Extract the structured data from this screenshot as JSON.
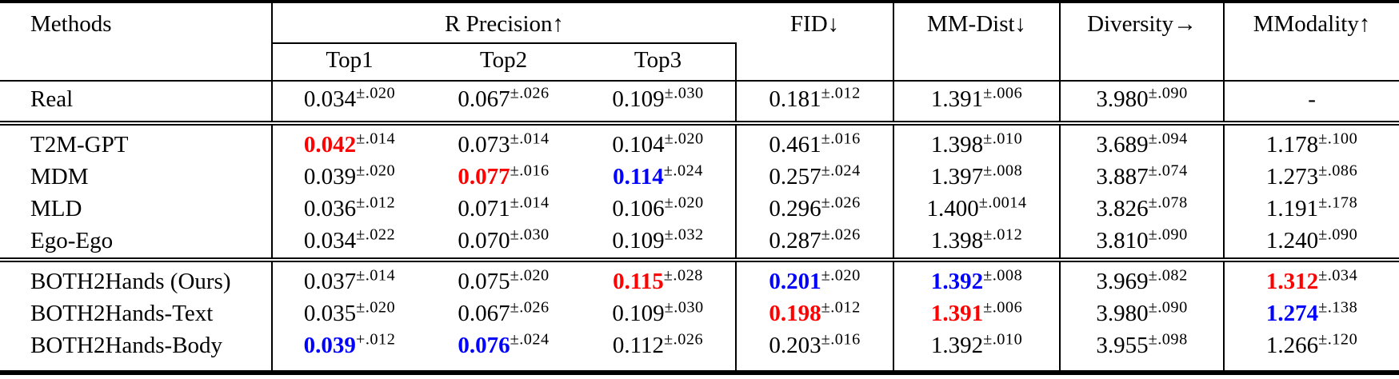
{
  "colors": {
    "highlight_best": "#ff0000",
    "highlight_second": "#0000ff",
    "text": "#000000",
    "background": "#ffffff"
  },
  "header": {
    "methods_label": "Methods",
    "r_precision_label": "R Precision↑",
    "sub_columns": [
      "Top1",
      "Top2",
      "Top3"
    ],
    "metric_columns": [
      "FID↓",
      "MM-Dist↓",
      "Diversity→",
      "MModality↑"
    ]
  },
  "rows": [
    {
      "method": "Real",
      "section": "real",
      "cells": [
        {
          "value": "0.034",
          "sup": "±.020",
          "color": "black"
        },
        {
          "value": "0.067",
          "sup": "±.026",
          "color": "black"
        },
        {
          "value": "0.109",
          "sup": "±.030",
          "color": "black"
        },
        {
          "value": "0.181",
          "sup": "±.012",
          "color": "black"
        },
        {
          "value": "1.391",
          "sup": "±.006",
          "color": "black"
        },
        {
          "value": "3.980",
          "sup": "±.090",
          "color": "black"
        },
        {
          "value": "-",
          "sup": "",
          "color": "black"
        }
      ]
    },
    {
      "method": "T2M-GPT",
      "section": "baseline",
      "cells": [
        {
          "value": "0.042",
          "sup": "±.014",
          "color": "red"
        },
        {
          "value": "0.073",
          "sup": "±.014",
          "color": "black"
        },
        {
          "value": "0.104",
          "sup": "±.020",
          "color": "black"
        },
        {
          "value": "0.461",
          "sup": "±.016",
          "color": "black"
        },
        {
          "value": "1.398",
          "sup": "±.010",
          "color": "black"
        },
        {
          "value": "3.689",
          "sup": "±.094",
          "color": "black"
        },
        {
          "value": "1.178",
          "sup": "±.100",
          "color": "black"
        }
      ]
    },
    {
      "method": "MDM",
      "section": "baseline",
      "cells": [
        {
          "value": "0.039",
          "sup": "±.020",
          "color": "black"
        },
        {
          "value": "0.077",
          "sup": "±.016",
          "color": "red"
        },
        {
          "value": "0.114",
          "sup": "±.024",
          "color": "blue"
        },
        {
          "value": "0.257",
          "sup": "±.024",
          "color": "black"
        },
        {
          "value": "1.397",
          "sup": "±.008",
          "color": "black"
        },
        {
          "value": "3.887",
          "sup": "±.074",
          "color": "black"
        },
        {
          "value": "1.273",
          "sup": "±.086",
          "color": "black"
        }
      ]
    },
    {
      "method": "MLD",
      "section": "baseline",
      "cells": [
        {
          "value": "0.036",
          "sup": "±.012",
          "color": "black"
        },
        {
          "value": "0.071",
          "sup": "±.014",
          "color": "black"
        },
        {
          "value": "0.106",
          "sup": "±.020",
          "color": "black"
        },
        {
          "value": "0.296",
          "sup": "±.026",
          "color": "black"
        },
        {
          "value": "1.400",
          "sup": "±.0014",
          "color": "black"
        },
        {
          "value": "3.826",
          "sup": "±.078",
          "color": "black"
        },
        {
          "value": "1.191",
          "sup": "±.178",
          "color": "black"
        }
      ]
    },
    {
      "method": "Ego-Ego",
      "section": "baseline",
      "cells": [
        {
          "value": "0.034",
          "sup": "±.022",
          "color": "black"
        },
        {
          "value": "0.070",
          "sup": "±.030",
          "color": "black"
        },
        {
          "value": "0.109",
          "sup": "±.032",
          "color": "black"
        },
        {
          "value": "0.287",
          "sup": "±.026",
          "color": "black"
        },
        {
          "value": "1.398",
          "sup": "±.012",
          "color": "black"
        },
        {
          "value": "3.810",
          "sup": "±.090",
          "color": "black"
        },
        {
          "value": "1.240",
          "sup": "±.090",
          "color": "black"
        }
      ]
    },
    {
      "method": "BOTH2Hands (Ours)",
      "section": "ours",
      "cells": [
        {
          "value": "0.037",
          "sup": "±.014",
          "color": "black"
        },
        {
          "value": "0.075",
          "sup": "±.020",
          "color": "black"
        },
        {
          "value": "0.115",
          "sup": "±.028",
          "color": "red"
        },
        {
          "value": "0.201",
          "sup": "±.020",
          "color": "blue"
        },
        {
          "value": "1.392",
          "sup": "±.008",
          "color": "blue"
        },
        {
          "value": "3.969",
          "sup": "±.082",
          "color": "black"
        },
        {
          "value": "1.312",
          "sup": "±.034",
          "color": "red"
        }
      ]
    },
    {
      "method": "BOTH2Hands-Text",
      "section": "ours",
      "cells": [
        {
          "value": "0.035",
          "sup": "±.020",
          "color": "black"
        },
        {
          "value": "0.067",
          "sup": "±.026",
          "color": "black"
        },
        {
          "value": "0.109",
          "sup": "±.030",
          "color": "black"
        },
        {
          "value": "0.198",
          "sup": "±.012",
          "color": "red"
        },
        {
          "value": "1.391",
          "sup": "±.006",
          "color": "red"
        },
        {
          "value": "3.980",
          "sup": "±.090",
          "color": "black"
        },
        {
          "value": "1.274",
          "sup": "±.138",
          "color": "blue"
        }
      ]
    },
    {
      "method": "BOTH2Hands-Body",
      "section": "ours",
      "cells": [
        {
          "value": "0.039",
          "sup": "+.012",
          "color": "blue"
        },
        {
          "value": "0.076",
          "sup": "±.024",
          "color": "blue"
        },
        {
          "value": "0.112",
          "sup": "±.026",
          "color": "black"
        },
        {
          "value": "0.203",
          "sup": "±.016",
          "color": "black"
        },
        {
          "value": "1.392",
          "sup": "±.010",
          "color": "black"
        },
        {
          "value": "3.955",
          "sup": "±.098",
          "color": "black"
        },
        {
          "value": "1.266",
          "sup": "±.120",
          "color": "black"
        }
      ]
    }
  ]
}
